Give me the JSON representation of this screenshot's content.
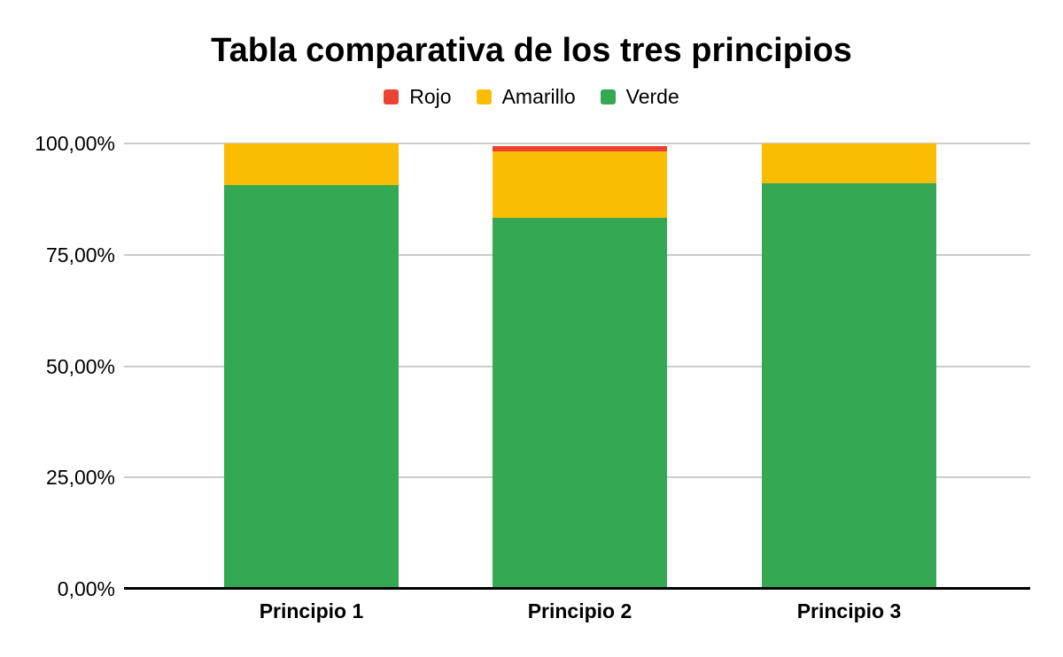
{
  "chart_data": {
    "type": "bar",
    "stacked": true,
    "title": "Tabla comparativa de los tres principios",
    "categories": [
      "Principio 1",
      "Principio 2",
      "Principio 3"
    ],
    "series": [
      {
        "name": "Rojo",
        "color": "#EA4335",
        "values": [
          0,
          1.2,
          0
        ]
      },
      {
        "name": "Amarillo",
        "color": "#FBBC04",
        "values": [
          9.4,
          14.9,
          9.0
        ]
      },
      {
        "name": "Verde",
        "color": "#34A853",
        "values": [
          90.6,
          83.4,
          91.0
        ]
      }
    ],
    "stack_order_bottom_to_top": [
      "Verde",
      "Amarillo",
      "Rojo"
    ],
    "xlabel": "",
    "ylabel": "",
    "ylim": [
      0,
      100
    ],
    "y_ticks": [
      {
        "value": 0,
        "label": "0,00%"
      },
      {
        "value": 25,
        "label": "25,00%"
      },
      {
        "value": 50,
        "label": "50,00%"
      },
      {
        "value": 75,
        "label": "75,00%"
      },
      {
        "value": 100,
        "label": "100,00%"
      }
    ],
    "legend_position": "top",
    "grid": true,
    "colors": {
      "background": "#ffffff",
      "gridline": "#cccccc",
      "axis": "#000000",
      "text": "#000000"
    }
  }
}
